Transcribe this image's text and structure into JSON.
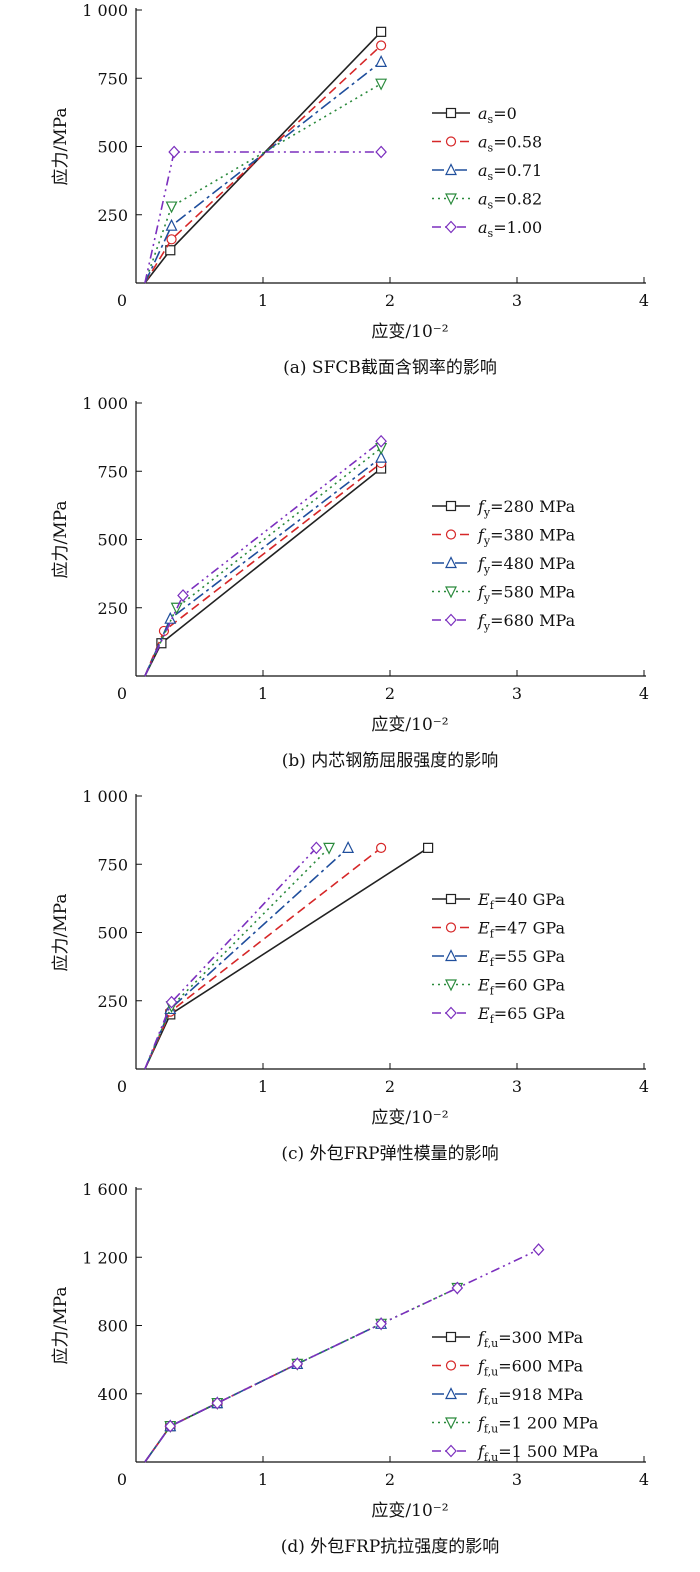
{
  "chart_data": [
    {
      "type": "line",
      "caption": "(a)   SFCB截面含钢率的影响",
      "xlabel": "应变/10⁻²",
      "ylabel": "应力/MPa",
      "xlim": [
        0,
        4
      ],
      "ylim": [
        0,
        1000
      ],
      "xticks": [
        0,
        1,
        2,
        3,
        4
      ],
      "xtick_labels": [
        "0",
        "1",
        "2",
        "3",
        "4"
      ],
      "yticks": [
        250,
        500,
        750,
        1000
      ],
      "ytick_labels": [
        "250",
        "500",
        "750",
        "1 000"
      ],
      "legend_position": "right-middle",
      "series": [
        {
          "name": "as=0",
          "var": "a",
          "sub": "s",
          "rest": "=0",
          "color": "#222222",
          "dash": "",
          "marker": "square",
          "x": [
            0.07,
            0.27,
            1.93
          ],
          "y": [
            0,
            120,
            920
          ]
        },
        {
          "name": "as=0.58",
          "var": "a",
          "sub": "s",
          "rest": "=0.58",
          "color": "#d62728",
          "dash": "9,5",
          "marker": "circle",
          "x": [
            0.07,
            0.28,
            1.93
          ],
          "y": [
            0,
            160,
            870
          ]
        },
        {
          "name": "as=0.71",
          "var": "a",
          "sub": "s",
          "rest": "=0.71",
          "color": "#1f4e9c",
          "dash": "12,4,3,4",
          "marker": "triangle",
          "x": [
            0.07,
            0.28,
            1.93
          ],
          "y": [
            0,
            210,
            810
          ]
        },
        {
          "name": "as=0.82",
          "var": "a",
          "sub": "s",
          "rest": "=0.82",
          "color": "#2a8a3c",
          "dash": "2,4",
          "marker": "triangle-down",
          "x": [
            0.07,
            0.28,
            1.93
          ],
          "y": [
            0,
            280,
            730
          ]
        },
        {
          "name": "as=1.00",
          "var": "a",
          "sub": "s",
          "rest": "=1.00",
          "color": "#7b2fbe",
          "dash": "9,4,2,4,2,4",
          "marker": "diamond",
          "x": [
            0.07,
            0.3,
            1.93
          ],
          "y": [
            0,
            480,
            480
          ]
        }
      ]
    },
    {
      "type": "line",
      "caption": "(b)   内芯钢筋屈服强度的影响",
      "xlabel": "应变/10⁻²",
      "ylabel": "应力/MPa",
      "xlim": [
        0,
        4
      ],
      "ylim": [
        0,
        1000
      ],
      "xticks": [
        0,
        1,
        2,
        3,
        4
      ],
      "xtick_labels": [
        "0",
        "1",
        "2",
        "3",
        "4"
      ],
      "yticks": [
        250,
        500,
        750,
        1000
      ],
      "ytick_labels": [
        "250",
        "500",
        "750",
        "1 000"
      ],
      "legend_position": "right-middle",
      "series": [
        {
          "name": "fy=280 MPa",
          "var": "f",
          "sub": "y",
          "rest": "=280 MPa",
          "color": "#222222",
          "dash": "",
          "marker": "square",
          "x": [
            0.07,
            0.2,
            1.93
          ],
          "y": [
            0,
            120,
            760
          ]
        },
        {
          "name": "fy=380 MPa",
          "var": "f",
          "sub": "y",
          "rest": "=380 MPa",
          "color": "#d62728",
          "dash": "9,5",
          "marker": "circle",
          "x": [
            0.07,
            0.22,
            1.93
          ],
          "y": [
            0,
            165,
            780
          ]
        },
        {
          "name": "fy=480 MPa",
          "var": "f",
          "sub": "y",
          "rest": "=480 MPa",
          "color": "#1f4e9c",
          "dash": "12,4,3,4",
          "marker": "triangle",
          "x": [
            0.07,
            0.27,
            1.93
          ],
          "y": [
            0,
            210,
            800
          ]
        },
        {
          "name": "fy=580 MPa",
          "var": "f",
          "sub": "y",
          "rest": "=580 MPa",
          "color": "#2a8a3c",
          "dash": "2,4",
          "marker": "triangle-down",
          "x": [
            0.07,
            0.32,
            1.93
          ],
          "y": [
            0,
            250,
            835
          ]
        },
        {
          "name": "fy=680 MPa",
          "var": "f",
          "sub": "y",
          "rest": "=680 MPa",
          "color": "#7b2fbe",
          "dash": "9,4,2,4,2,4",
          "marker": "diamond",
          "x": [
            0.07,
            0.37,
            1.93
          ],
          "y": [
            0,
            295,
            860
          ]
        }
      ]
    },
    {
      "type": "line",
      "caption": "(c)   外包FRP弹性模量的影响",
      "xlabel": "应变/10⁻²",
      "ylabel": "应力/MPa",
      "xlim": [
        0,
        4
      ],
      "ylim": [
        0,
        1000
      ],
      "xticks": [
        0,
        1,
        2,
        3,
        4
      ],
      "xtick_labels": [
        "0",
        "1",
        "2",
        "3",
        "4"
      ],
      "yticks": [
        250,
        500,
        750,
        1000
      ],
      "ytick_labels": [
        "250",
        "500",
        "750",
        "1 000"
      ],
      "legend_position": "right-middle",
      "series": [
        {
          "name": "Ef=40 GPa",
          "var": "E",
          "sub": "f",
          "rest": "=40 GPa",
          "color": "#222222",
          "dash": "",
          "marker": "square",
          "x": [
            0.07,
            0.27,
            2.3
          ],
          "y": [
            0,
            200,
            810
          ]
        },
        {
          "name": "Ef=47 GPa",
          "var": "E",
          "sub": "f",
          "rest": "=47 GPa",
          "color": "#d62728",
          "dash": "9,5",
          "marker": "circle",
          "x": [
            0.07,
            0.27,
            1.93
          ],
          "y": [
            0,
            210,
            810
          ]
        },
        {
          "name": "Ef=55 GPa",
          "var": "E",
          "sub": "f",
          "rest": "=55 GPa",
          "color": "#1f4e9c",
          "dash": "12,4,3,4",
          "marker": "triangle",
          "x": [
            0.07,
            0.27,
            1.67
          ],
          "y": [
            0,
            220,
            810
          ]
        },
        {
          "name": "Ef=60 GPa",
          "var": "E",
          "sub": "f",
          "rest": "=60 GPa",
          "color": "#2a8a3c",
          "dash": "2,4",
          "marker": "triangle-down",
          "x": [
            0.07,
            0.28,
            1.52
          ],
          "y": [
            0,
            230,
            810
          ]
        },
        {
          "name": "Ef=65 GPa",
          "var": "E",
          "sub": "f",
          "rest": "=65 GPa",
          "color": "#7b2fbe",
          "dash": "9,4,2,4,2,4",
          "marker": "diamond",
          "x": [
            0.07,
            0.28,
            1.42
          ],
          "y": [
            0,
            245,
            810
          ]
        }
      ]
    },
    {
      "type": "line",
      "caption": "(d)   外包FRP抗拉强度的影响",
      "xlabel": "应变/10⁻²",
      "ylabel": "应力/MPa",
      "xlim": [
        0,
        4
      ],
      "ylim": [
        0,
        1600
      ],
      "xticks": [
        0,
        1,
        2,
        3,
        4
      ],
      "xtick_labels": [
        "0",
        "1",
        "2",
        "3",
        "4"
      ],
      "yticks": [
        400,
        800,
        1200,
        1600
      ],
      "ytick_labels": [
        "400",
        "800",
        "1 200",
        "1 600"
      ],
      "legend_position": "right-lower",
      "series": [
        {
          "name": "ff,u=300 MPa",
          "var": "f",
          "sub": "f,u",
          "rest": "=300 MPa",
          "color": "#222222",
          "dash": "",
          "marker": "square",
          "x": [
            0.07,
            0.27,
            0.64
          ],
          "y": [
            0,
            210,
            345
          ]
        },
        {
          "name": "ff,u=600 MPa",
          "var": "f",
          "sub": "f,u",
          "rest": "=600 MPa",
          "color": "#d62728",
          "dash": "9,5",
          "marker": "circle",
          "x": [
            0.07,
            0.27,
            0.64,
            1.27
          ],
          "y": [
            0,
            210,
            345,
            575
          ]
        },
        {
          "name": "ff,u=918 MPa",
          "var": "f",
          "sub": "f,u",
          "rest": "=918 MPa",
          "color": "#1f4e9c",
          "dash": "12,4,3,4",
          "marker": "triangle",
          "x": [
            0.07,
            0.27,
            0.64,
            1.27,
            1.93
          ],
          "y": [
            0,
            210,
            345,
            575,
            810
          ]
        },
        {
          "name": "ff,u=1 200 MPa",
          "var": "f",
          "sub": "f,u",
          "rest": "=1 200 MPa",
          "color": "#2a8a3c",
          "dash": "2,4",
          "marker": "triangle-down",
          "x": [
            0.07,
            0.27,
            0.64,
            1.27,
            1.93,
            2.53
          ],
          "y": [
            0,
            210,
            345,
            575,
            810,
            1020
          ]
        },
        {
          "name": "ff,u=1 500 MPa",
          "var": "f",
          "sub": "f,u",
          "rest": "=1 500 MPa",
          "color": "#7b2fbe",
          "dash": "9,4,2,4,2,4",
          "marker": "diamond",
          "x": [
            0.07,
            0.27,
            0.64,
            1.27,
            1.93,
            2.53,
            3.17
          ],
          "y": [
            0,
            210,
            345,
            575,
            810,
            1020,
            1245
          ]
        }
      ]
    }
  ]
}
